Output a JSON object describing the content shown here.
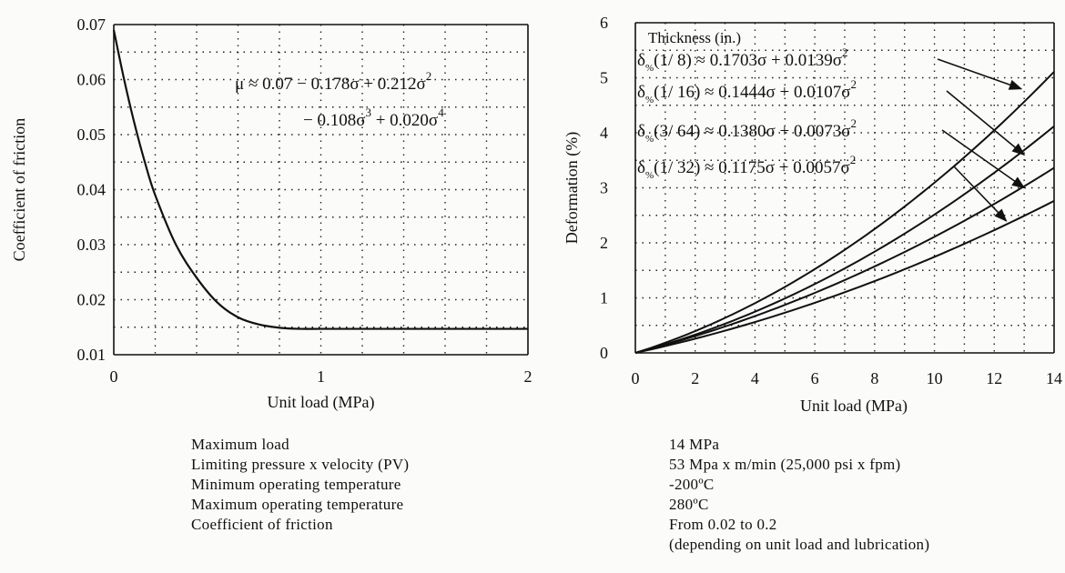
{
  "chart_data": [
    {
      "type": "line",
      "ylabel": "Coefficient of friction",
      "xlabel": "Unit load (MPa)",
      "xlim": [
        0,
        2
      ],
      "ylim": [
        0.01,
        0.07
      ],
      "x_ticks": [
        "0",
        "1",
        "2"
      ],
      "y_ticks": [
        "0.01",
        "0.02",
        "0.03",
        "0.04",
        "0.05",
        "0.06",
        "0.07"
      ],
      "grid": true,
      "annotation": {
        "prefix": "μ ≈ 0.07 − 0.178σ + 0.212σ",
        "prefix_sup": "2",
        "line2_a": "− 0.108σ",
        "line2_a_sup": "3",
        "line2_b": " + 0.020σ",
        "line2_b_sup": "4"
      },
      "series": [
        {
          "x": [
            0,
            0.05,
            0.1,
            0.15,
            0.2,
            0.3,
            0.4,
            0.5,
            0.6,
            0.7,
            0.8,
            0.9,
            1.0,
            1.2,
            1.5,
            2.0
          ],
          "y": [
            0.069,
            0.06,
            0.052,
            0.045,
            0.039,
            0.03,
            0.024,
            0.0195,
            0.0168,
            0.0155,
            0.0149,
            0.0147,
            0.0147,
            0.0147,
            0.0147,
            0.0147
          ]
        }
      ]
    },
    {
      "type": "line",
      "ylabel": "Deformation (%)",
      "xlabel": "Unit load (MPa)",
      "xlim": [
        0,
        14
      ],
      "ylim": [
        0,
        6
      ],
      "x_ticks": [
        "0",
        "2",
        "4",
        "6",
        "8",
        "10",
        "12",
        "14"
      ],
      "y_ticks": [
        "0",
        "1",
        "2",
        "3",
        "4",
        "5",
        "6"
      ],
      "grid": true,
      "legend_title": "Thickness (in.)",
      "series": [
        {
          "label_main": "(1/ 8) ≈ 0.1703σ + 0.0139σ",
          "sub": "%",
          "sup": "2",
          "a": 0.1703,
          "b": 0.0139,
          "arrow_target": [
            12.9,
            4.8
          ]
        },
        {
          "label_main": "(1/ 16) ≈ 0.1444σ + 0.0107σ",
          "sub": "%",
          "sup": "2",
          "a": 0.1444,
          "b": 0.0107,
          "arrow_target": [
            13.0,
            3.6
          ]
        },
        {
          "label_main": "(3/ 64) ≈ 0.1380σ + 0.0073σ",
          "sub": "%",
          "sup": "2",
          "a": 0.138,
          "b": 0.0073,
          "arrow_target": [
            13.0,
            3.0
          ]
        },
        {
          "label_main": "(1/ 32) ≈ 0.1175σ + 0.0057σ",
          "sub": "%",
          "sup": "2",
          "a": 0.1175,
          "b": 0.0057,
          "arrow_target": [
            12.4,
            2.4
          ]
        }
      ]
    }
  ],
  "properties": {
    "labels": [
      "Maximum load",
      "Limiting pressure x velocity (PV)",
      "Minimum operating temperature",
      "Maximum operating temperature",
      "Coefficient of friction"
    ],
    "values": [
      "14 MPa",
      "53 Mpa x m/min (25,000 psi x fpm)",
      "-200ºC",
      "280ºC",
      "From 0.02 to 0.2",
      "(depending on unit load and lubrication)"
    ]
  }
}
